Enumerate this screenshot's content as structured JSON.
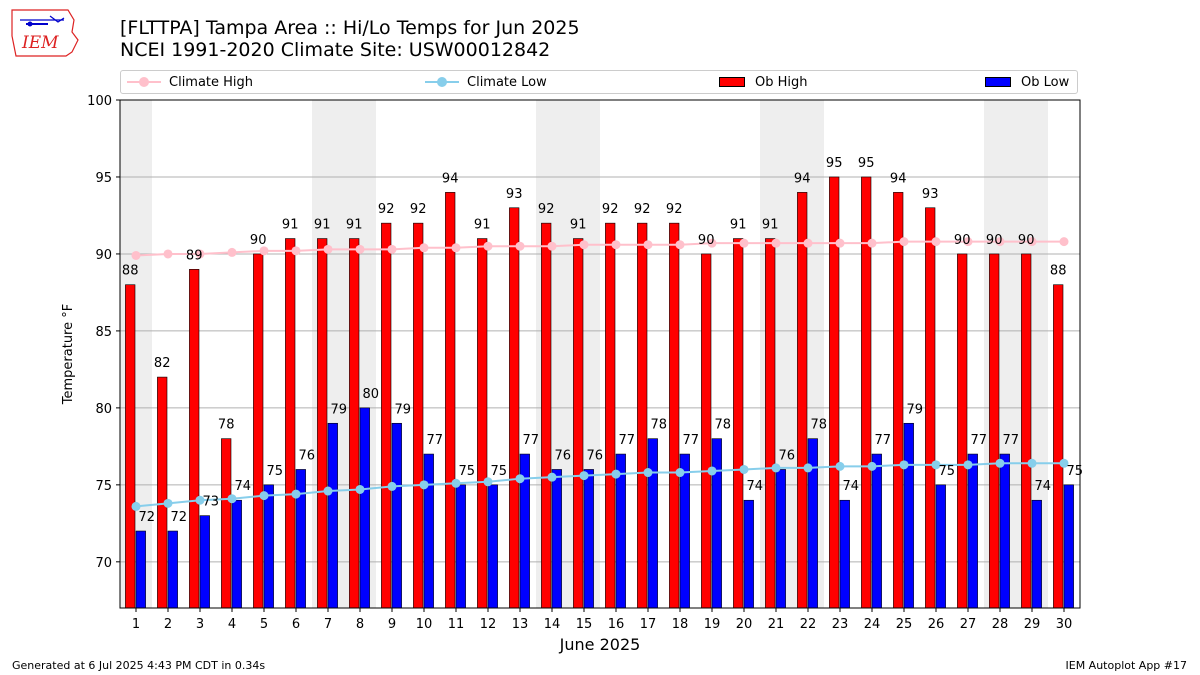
{
  "header": {
    "title_line1": "[FLTTPA] Tampa Area :: Hi/Lo Temps for Jun 2025",
    "title_line2": "NCEI 1991-2020 Climate Site: USW00012842",
    "logo_text": "IEM"
  },
  "legend": {
    "climate_high": "Climate High",
    "climate_low": "Climate Low",
    "ob_high": "Ob High",
    "ob_low": "Ob Low"
  },
  "footer": {
    "left": "Generated at 6 Jul 2025 4:43 PM CDT in 0.34s",
    "right": "IEM Autoplot App #17"
  },
  "colors": {
    "ob_high": "#ff0000",
    "ob_low": "#0000ff",
    "climate_high": "#ffc0cb",
    "climate_low": "#87ceeb",
    "weekend_band": "#eeeeee"
  },
  "chart_data": {
    "type": "bar",
    "xlabel": "June 2025",
    "ylabel": "Temperature °F",
    "ylim": [
      67,
      100
    ],
    "yticks": [
      70,
      75,
      80,
      85,
      90,
      95,
      100
    ],
    "grid": true,
    "legend_placement": "top",
    "categories": [
      "1",
      "2",
      "3",
      "4",
      "5",
      "6",
      "7",
      "8",
      "9",
      "10",
      "11",
      "12",
      "13",
      "14",
      "15",
      "16",
      "17",
      "18",
      "19",
      "20",
      "21",
      "22",
      "23",
      "24",
      "25",
      "26",
      "27",
      "28",
      "29",
      "30"
    ],
    "weekend_days": [
      1,
      7,
      8,
      14,
      15,
      21,
      22,
      28,
      29
    ],
    "series": [
      {
        "name": "Ob High",
        "kind": "bar",
        "values": [
          88,
          82,
          89,
          78,
          90,
          91,
          91,
          91,
          92,
          92,
          94,
          91,
          93,
          92,
          91,
          92,
          92,
          92,
          90,
          91,
          91,
          94,
          95,
          95,
          94,
          93,
          90,
          90,
          90,
          88
        ]
      },
      {
        "name": "Ob Low",
        "kind": "bar",
        "values": [
          72,
          72,
          73,
          74,
          75,
          76,
          79,
          80,
          79,
          77,
          75,
          75,
          77,
          76,
          76,
          77,
          78,
          77,
          78,
          74,
          76,
          78,
          74,
          77,
          79,
          75,
          77,
          77,
          74,
          75
        ]
      },
      {
        "name": "Climate High",
        "kind": "line",
        "values": [
          89.9,
          90.0,
          90.0,
          90.1,
          90.2,
          90.2,
          90.3,
          90.3,
          90.3,
          90.4,
          90.4,
          90.5,
          90.5,
          90.5,
          90.6,
          90.6,
          90.6,
          90.6,
          90.7,
          90.7,
          90.7,
          90.7,
          90.7,
          90.7,
          90.8,
          90.8,
          90.8,
          90.8,
          90.8,
          90.8
        ]
      },
      {
        "name": "Climate Low",
        "kind": "line",
        "values": [
          73.6,
          73.8,
          74.0,
          74.1,
          74.3,
          74.4,
          74.6,
          74.7,
          74.9,
          75.0,
          75.1,
          75.2,
          75.4,
          75.5,
          75.6,
          75.7,
          75.8,
          75.8,
          75.9,
          76.0,
          76.1,
          76.1,
          76.2,
          76.2,
          76.3,
          76.3,
          76.3,
          76.4,
          76.4,
          76.4
        ]
      }
    ]
  }
}
